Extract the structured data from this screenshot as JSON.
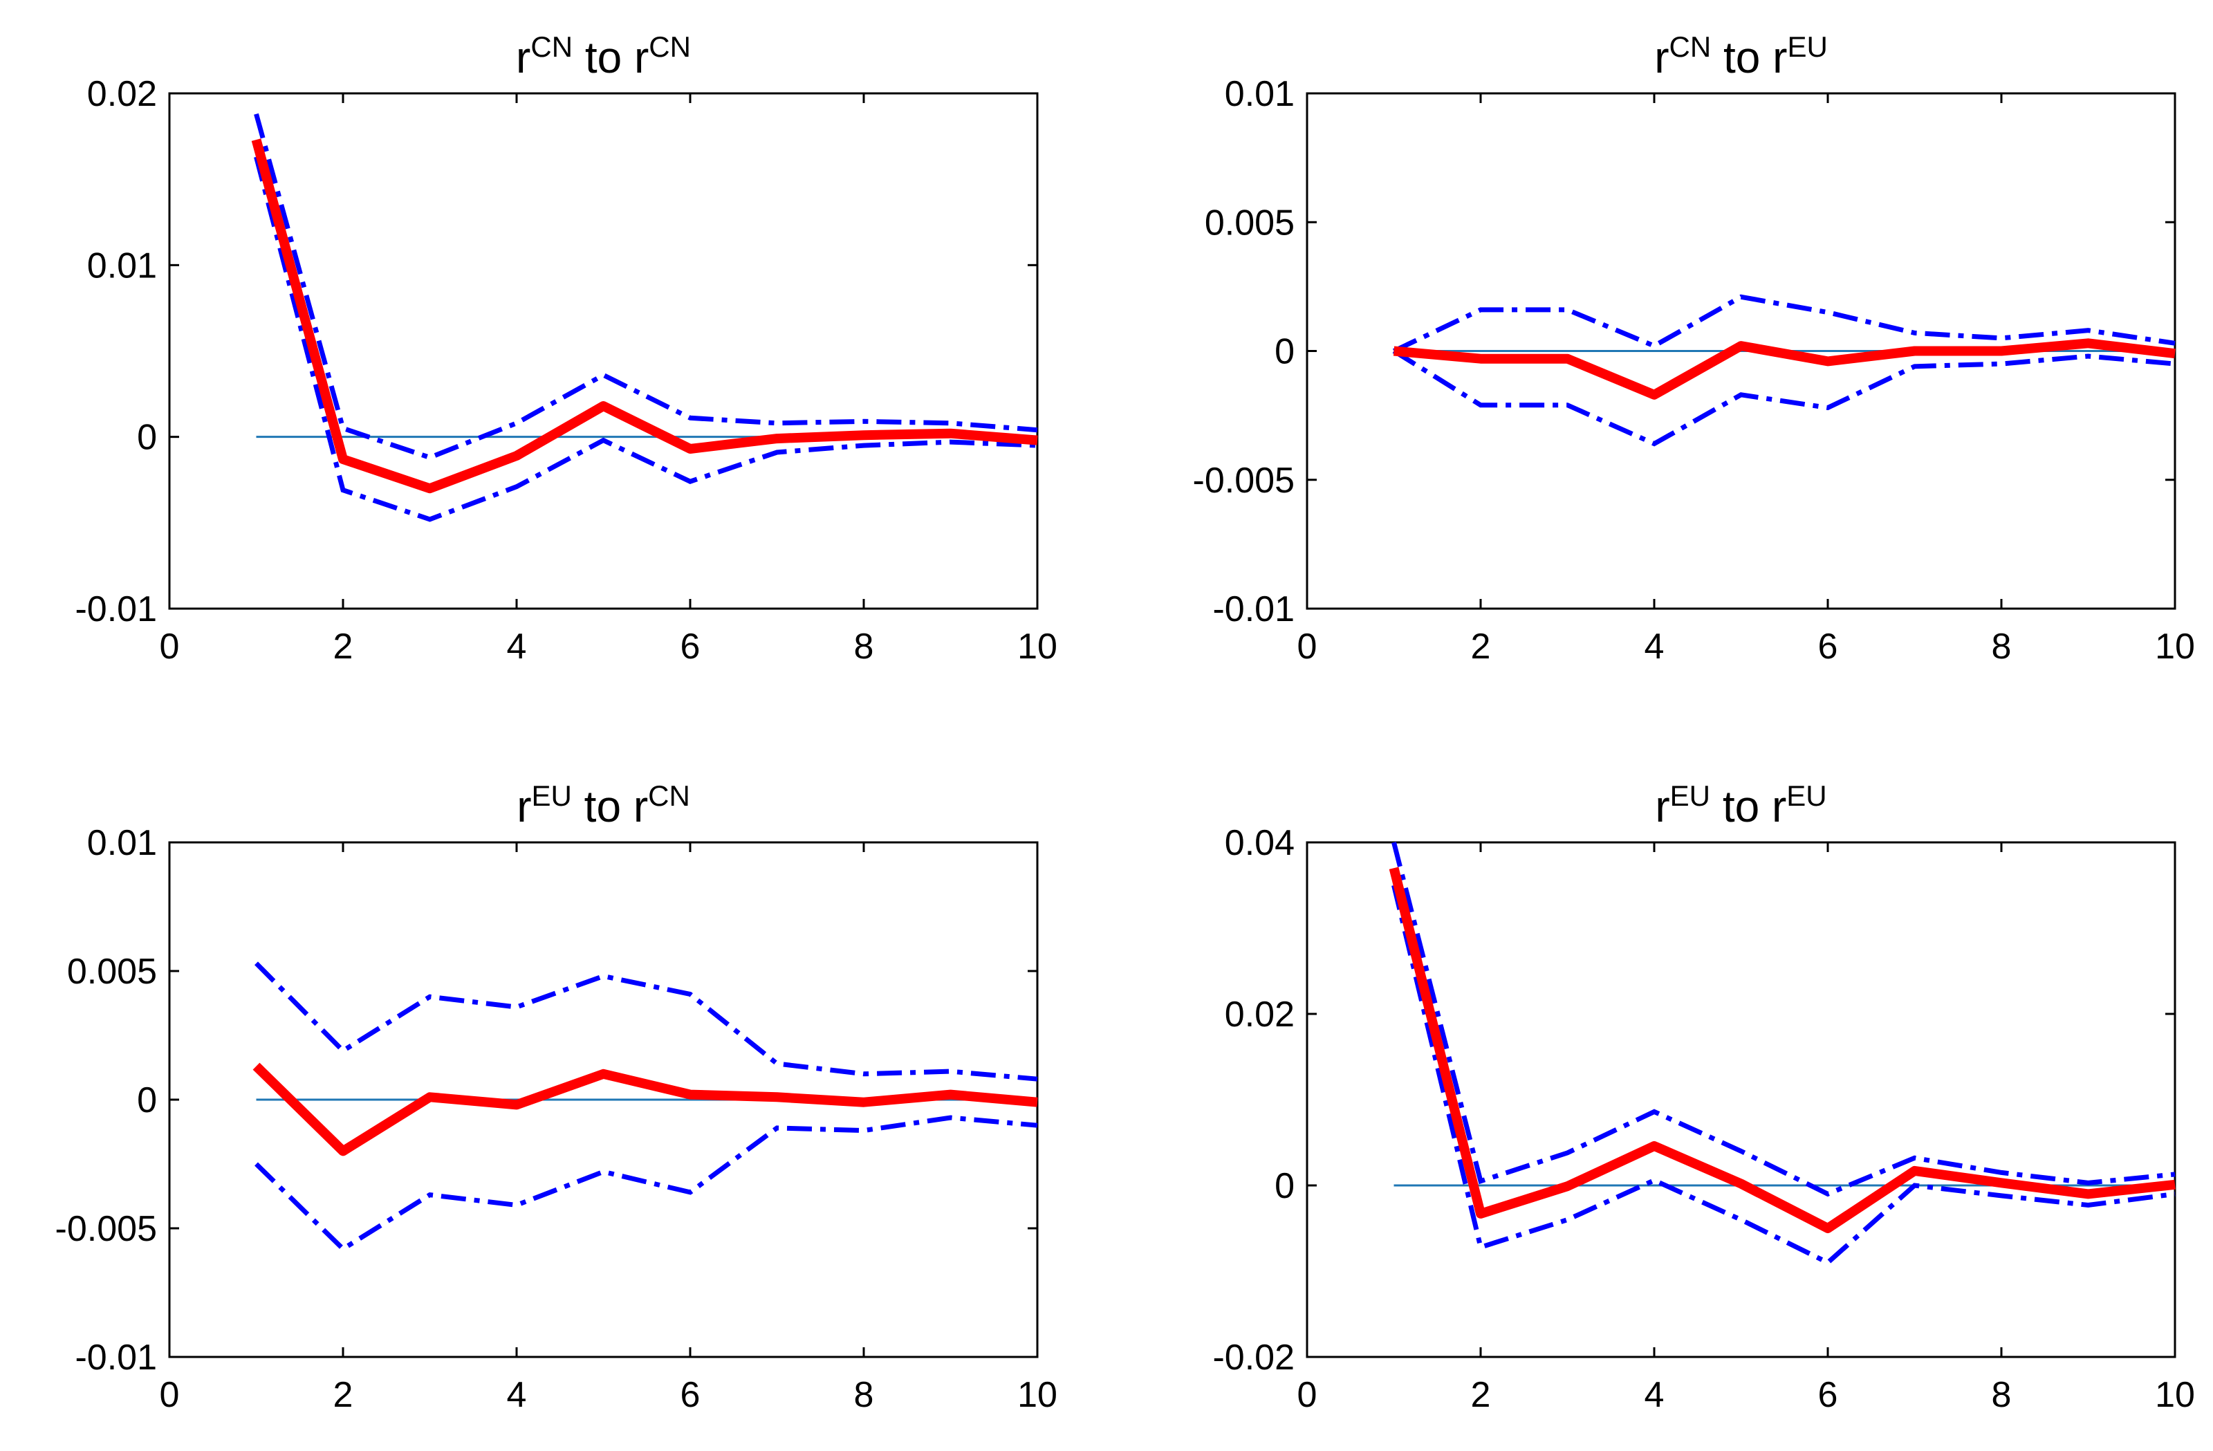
{
  "chart_data": [
    {
      "type": "line",
      "title": {
        "base1": "r",
        "sup1": "CN",
        "mid": " to ",
        "base2": "r",
        "sup2": "CN"
      },
      "x": [
        1,
        2,
        3,
        4,
        5,
        6,
        7,
        8,
        9,
        10
      ],
      "xlim": [
        0,
        10
      ],
      "xticks": [
        "0",
        "2",
        "4",
        "6",
        "8",
        "10"
      ],
      "ylim": [
        -0.01,
        0.02
      ],
      "yticks": [
        "-0.01",
        "0",
        "0.01",
        "0.02"
      ],
      "series": [
        {
          "name": "irf",
          "values": [
            0.0173,
            -0.0013,
            -0.003,
            -0.0011,
            0.0018,
            -0.0007,
            -0.0001,
            0.0001,
            0.0002,
            -0.0002
          ]
        },
        {
          "name": "upper",
          "values": [
            0.0188,
            0.0005,
            -0.0012,
            0.0008,
            0.0036,
            0.0011,
            0.0008,
            0.0009,
            0.0008,
            0.0004
          ]
        },
        {
          "name": "lower",
          "values": [
            0.0163,
            -0.0031,
            -0.0048,
            -0.0029,
            -0.0002,
            -0.0026,
            -0.0009,
            -0.0005,
            -0.0003,
            -0.0005
          ]
        }
      ]
    },
    {
      "type": "line",
      "title": {
        "base1": "r",
        "sup1": "CN",
        "mid": " to ",
        "base2": "r",
        "sup2": "EU"
      },
      "x": [
        1,
        2,
        3,
        4,
        5,
        6,
        7,
        8,
        9,
        10
      ],
      "xlim": [
        0,
        10
      ],
      "xticks": [
        "0",
        "2",
        "4",
        "6",
        "8",
        "10"
      ],
      "ylim": [
        -0.01,
        0.01
      ],
      "yticks": [
        "-0.01",
        "-0.005",
        "0",
        "0.005",
        "0.01"
      ],
      "series": [
        {
          "name": "irf",
          "values": [
            0.0,
            -0.0003,
            -0.0003,
            -0.0017,
            0.0002,
            -0.0004,
            0.0,
            0.0,
            0.0003,
            -0.0001
          ]
        },
        {
          "name": "upper",
          "values": [
            0.0,
            0.0016,
            0.0016,
            0.0002,
            0.0021,
            0.0015,
            0.0007,
            0.0005,
            0.0008,
            0.0003
          ]
        },
        {
          "name": "lower",
          "values": [
            0.0,
            -0.0021,
            -0.0021,
            -0.0036,
            -0.0017,
            -0.0022,
            -0.0006,
            -0.0005,
            -0.0002,
            -0.0005
          ]
        }
      ]
    },
    {
      "type": "line",
      "title": {
        "base1": "r",
        "sup1": "EU",
        "mid": " to ",
        "base2": "r",
        "sup2": "CN"
      },
      "x": [
        1,
        2,
        3,
        4,
        5,
        6,
        7,
        8,
        9,
        10
      ],
      "xlim": [
        0,
        10
      ],
      "xticks": [
        "0",
        "2",
        "4",
        "6",
        "8",
        "10"
      ],
      "ylim": [
        -0.01,
        0.01
      ],
      "yticks": [
        "-0.01",
        "-0.005",
        "0",
        "0.005",
        "0.01"
      ],
      "series": [
        {
          "name": "irf",
          "values": [
            0.0013,
            -0.002,
            0.0001,
            -0.0002,
            0.001,
            0.0002,
            0.0001,
            -0.0001,
            0.0002,
            -0.0001
          ]
        },
        {
          "name": "upper",
          "values": [
            0.0053,
            0.0019,
            0.004,
            0.0036,
            0.0048,
            0.0041,
            0.0014,
            0.001,
            0.0011,
            0.0008
          ]
        },
        {
          "name": "lower",
          "values": [
            -0.0025,
            -0.0058,
            -0.0037,
            -0.0041,
            -0.0028,
            -0.0036,
            -0.0011,
            -0.0012,
            -0.0007,
            -0.001
          ]
        }
      ]
    },
    {
      "type": "line",
      "title": {
        "base1": "r",
        "sup1": "EU",
        "mid": " to ",
        "base2": "r",
        "sup2": "EU"
      },
      "x": [
        1,
        2,
        3,
        4,
        5,
        6,
        7,
        8,
        9,
        10
      ],
      "xlim": [
        0,
        10
      ],
      "xticks": [
        "0",
        "2",
        "4",
        "6",
        "8",
        "10"
      ],
      "ylim": [
        -0.02,
        0.04
      ],
      "yticks": [
        "-0.02",
        "0",
        "0.02",
        "0.04"
      ],
      "series": [
        {
          "name": "irf",
          "values": [
            0.037,
            -0.0033,
            -0.0001,
            0.0046,
            0.0002,
            -0.005,
            0.0017,
            0.0003,
            -0.001,
            0.0001
          ]
        },
        {
          "name": "upper",
          "values": [
            0.04,
            0.0005,
            0.0038,
            0.0086,
            0.004,
            -0.001,
            0.0032,
            0.0015,
            0.0003,
            0.0013
          ]
        },
        {
          "name": "lower",
          "values": [
            0.035,
            -0.0072,
            -0.004,
            0.0006,
            -0.004,
            -0.009,
            0.0,
            -0.0012,
            -0.0023,
            -0.001
          ]
        }
      ]
    }
  ]
}
